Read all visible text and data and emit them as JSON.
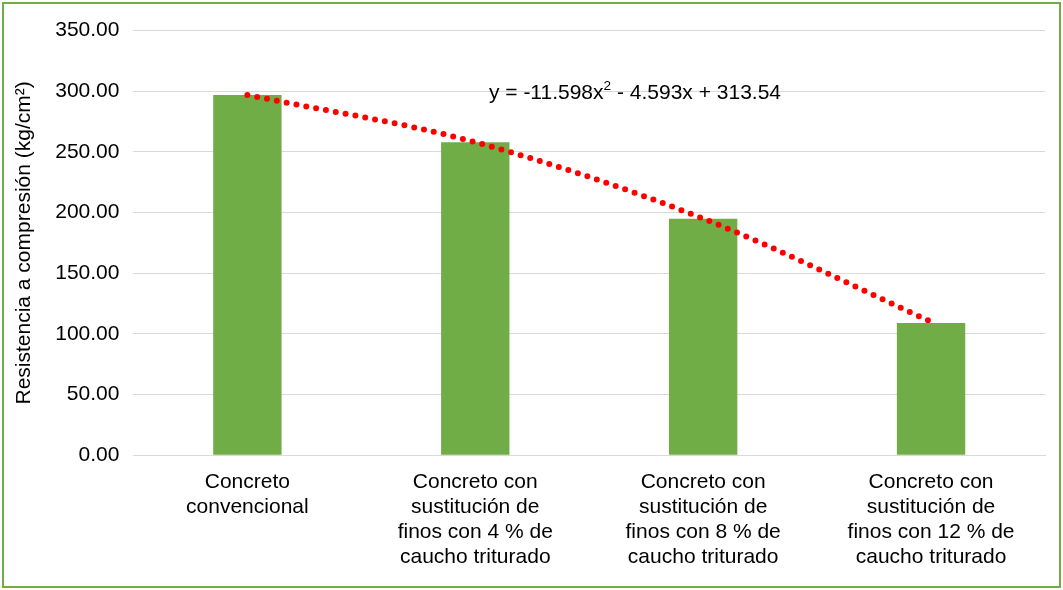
{
  "chart_data": {
    "type": "bar",
    "ylabel": "Resistencia a compresión (kg/cm²)",
    "categories": [
      "Concreto convencional",
      "Concreto con sustitución de finos con 4 % de caucho triturado",
      "Concreto con sustitución de finos con 8 % de caucho triturado",
      "Concreto con sustitución de finos con 12 % de caucho triturado"
    ],
    "series": [
      {
        "color": "#70ad47",
        "values": [
          297,
          258,
          195,
          109
        ]
      },
      {
        "type": "line",
        "color": "#ff0000",
        "marker": "none",
        "line_style": "dotted",
        "x": [
          "Concreto convencional",
          "Concreto con sustitución de finos con 4 % de caucho triturado",
          "Concreto con sustitución de finos con 8 % de caucho triturado",
          "Concreto con sustitución de finos con 12 % de caucho triturado"
        ],
        "values": [
          297,
          258,
          195,
          110
        ]
      }
    ],
    "ylim": [
      0,
      350
    ],
    "yticks": [
      {
        "value": 0,
        "label": "0.00"
      },
      {
        "value": 50,
        "label": "50.00"
      },
      {
        "value": 100,
        "label": "100.00"
      },
      {
        "value": 150,
        "label": "150.00"
      },
      {
        "value": 200,
        "label": "200.00"
      },
      {
        "value": 250,
        "label": "250.00"
      },
      {
        "value": 300,
        "label": "300.00"
      },
      {
        "value": 350,
        "label": "350.00"
      }
    ],
    "grid": "y",
    "legend": false,
    "annotations": [
      "y = -11.598x$^{2}$ - 4.593x + 313.54"
    ]
  }
}
